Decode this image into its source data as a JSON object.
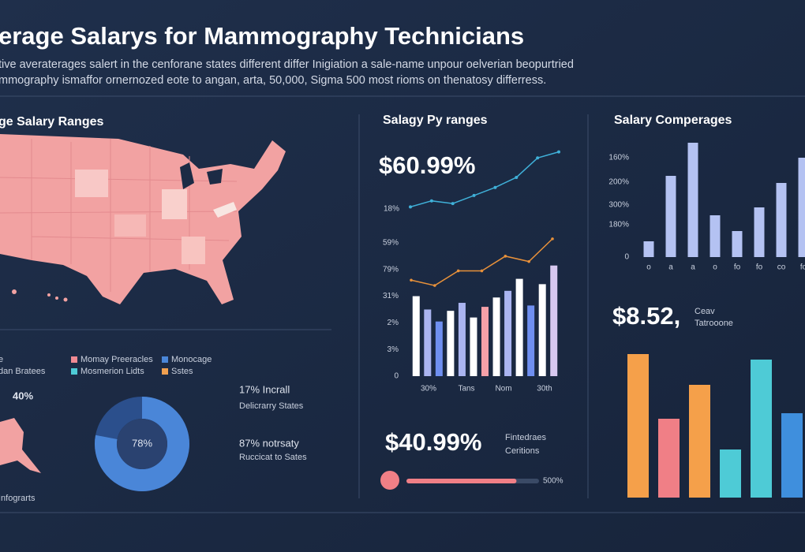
{
  "header": {
    "title": "erage Salarys for Mammography Technicians",
    "subtitle": [
      "tive averaterages salert in the cenforane states different differ Inigiation a sale-name unpour oelverian beopurtried",
      "mmography ismaffor ornernozed eote to angan, arta, 50,000, Sigma 500 most rioms on thenatosy differress."
    ]
  },
  "map_panel": {
    "title": "ge Salary Ranges",
    "legend_side": [
      "e",
      "dan Bratees"
    ],
    "legend": [
      {
        "label": "Momay Preeracles",
        "color": "#f08a93"
      },
      {
        "label": "Monocage",
        "color": "#4a86d8"
      },
      {
        "label": "Mosmerion Lidts",
        "color": "#4ecbd6"
      },
      {
        "label": "Sstes",
        "color": "#f0a050"
      }
    ],
    "inset_label": "40%",
    "footer": "Infograrts"
  },
  "stats": [
    {
      "headline": "17% Incrall",
      "label": "Delicrarry States"
    },
    {
      "headline": "87% notrsaty",
      "label": "Ruccicat to Sates"
    }
  ],
  "middle": {
    "title": "Salagy Py ranges",
    "headline": "$60.99%",
    "line_label": "18%",
    "x_labels": [
      "30%",
      "Tans",
      "Nom",
      "30th"
    ],
    "big": "$40.99%",
    "note": [
      "Fintedraes",
      "Ceritions"
    ],
    "progress_label": "500%"
  },
  "right": {
    "title": "Salary Comperages",
    "big": "$8.52,",
    "note": [
      "Ceav",
      "Tatrooone"
    ]
  },
  "chart_data": [
    {
      "type": "donut",
      "values": [
        78
      ],
      "value_labels": [
        "78%"
      ],
      "ylim": [
        0,
        100
      ],
      "color": "#4a86d8",
      "track_color": "#2b4f8c"
    },
    {
      "type": "line",
      "values": [
        9,
        18,
        14,
        26,
        38,
        53,
        82,
        91
      ],
      "ylim": [
        0,
        100
      ],
      "color": "#3fb0d8"
    },
    {
      "type": "bar",
      "values": [
        60,
        50,
        41,
        49,
        55,
        44,
        52,
        59,
        64,
        73,
        53,
        69,
        83
      ],
      "colors": [
        "#ffffff",
        "#aab4f0",
        "#6f8ff0",
        "#ffffff",
        "#aab4f0",
        "#ffffff",
        "#f5a0a8",
        "#ffffff",
        "#aab4f0",
        "#ffffff",
        "#6f8ff0",
        "#ffffff",
        "#d7c8f0"
      ],
      "line_values": [
        72,
        68,
        79,
        79,
        90,
        86,
        103
      ],
      "line_color": "#e8913a",
      "ylim": [
        0,
        105
      ],
      "yticks": [
        0,
        {
          "value": 20,
          "label": "3%"
        },
        {
          "value": 40,
          "label": "2%"
        },
        {
          "value": 60,
          "label": "31%"
        },
        {
          "value": 80,
          "label": "79%"
        },
        {
          "value": 100,
          "label": "59%"
        }
      ]
    },
    {
      "type": "bar",
      "categories": [
        "o",
        "a",
        "a",
        "o",
        "fo",
        "fo",
        "co",
        "fo"
      ],
      "values": [
        20,
        103,
        145,
        53,
        33,
        63,
        94,
        126
      ],
      "color": "#b4c2f2",
      "ylim": [
        0,
        150
      ],
      "yticks": [
        0,
        {
          "value": 41,
          "label": "180%"
        },
        {
          "value": 66,
          "label": "300%"
        },
        {
          "value": 95,
          "label": "200%"
        },
        {
          "value": 126,
          "label": "160%"
        }
      ]
    },
    {
      "type": "bar",
      "values": [
        182,
        100,
        143,
        61,
        175,
        107
      ],
      "colors": [
        "#f5a04a",
        "#f07f86",
        "#f5a04a",
        "#4ecbd6",
        "#4ecbd6",
        "#3f8fdd"
      ],
      "ylim": [
        0,
        200
      ]
    },
    {
      "type": "progress",
      "values": [
        83
      ],
      "ylim": [
        0,
        100
      ],
      "color": "#f07f86",
      "track_color": "#3a4a66"
    }
  ]
}
